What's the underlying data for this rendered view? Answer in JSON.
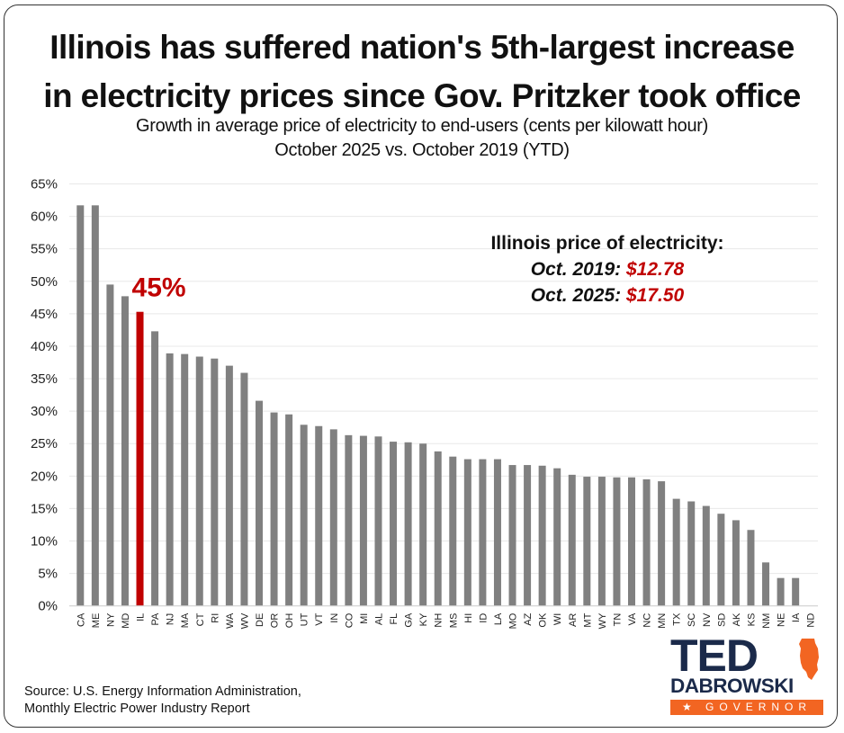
{
  "title_lines": [
    "Illinois has suffered nation's 5th-largest increase",
    "in electricity prices since Gov. Pritzker took office"
  ],
  "subtitle_lines": [
    "Growth in average price of electricity to end-users (cents per kilowatt hour)",
    "October 2025 vs. October 2019 (YTD)"
  ],
  "annotation": {
    "heading": "Illinois price of electricity:",
    "rows": [
      {
        "label": "Oct. 2019:",
        "value": "$12.78"
      },
      {
        "label": "Oct. 2025:",
        "value": "$17.50"
      }
    ]
  },
  "source_lines": [
    "Source: U.S. Energy Information Administration,",
    "Monthly Electric Power Industry Report"
  ],
  "logo": {
    "name_top": "TED",
    "name_bottom": "DABROWSKI",
    "tagline": "★ GOVERNOR ★"
  },
  "colors": {
    "bar": "#808080",
    "highlight": "#c00000",
    "grid": "#e8e8e8",
    "logo_navy": "#1b2a4a",
    "logo_orange": "#f26522"
  },
  "chart_data": {
    "type": "bar",
    "title": "Illinois has suffered nation's 5th-largest increase in electricity prices since Gov. Pritzker took office",
    "subtitle": "Growth in average price of electricity to end-users (cents per kilowatt hour) — October 2025 vs. October 2019 (YTD)",
    "xlabel": "",
    "ylabel": "",
    "ylim": [
      0,
      65
    ],
    "y_ticks": [
      0,
      5,
      10,
      15,
      20,
      25,
      30,
      35,
      40,
      45,
      50,
      55,
      60,
      65
    ],
    "y_tick_format": "percent",
    "grid": true,
    "highlight_category": "IL",
    "highlight_label": "45%",
    "categories": [
      "CA",
      "ME",
      "NY",
      "MD",
      "IL",
      "PA",
      "NJ",
      "MA",
      "CT",
      "RI",
      "WA",
      "WV",
      "DE",
      "OR",
      "OH",
      "UT",
      "VT",
      "IN",
      "CO",
      "MI",
      "AL",
      "FL",
      "GA",
      "KY",
      "NH",
      "MS",
      "HI",
      "ID",
      "LA",
      "MO",
      "AZ",
      "OK",
      "WI",
      "AR",
      "MT",
      "WY",
      "TN",
      "VA",
      "NC",
      "MN",
      "TX",
      "SC",
      "NV",
      "SD",
      "AK",
      "KS",
      "NM",
      "NE",
      "IA",
      "ND"
    ],
    "values": [
      61.7,
      61.7,
      49.5,
      47.7,
      45.3,
      42.3,
      38.9,
      38.8,
      38.4,
      38.1,
      37.0,
      35.9,
      31.6,
      29.8,
      29.5,
      27.9,
      27.7,
      27.2,
      26.3,
      26.2,
      26.1,
      25.3,
      25.2,
      25.0,
      23.8,
      23.0,
      22.6,
      22.6,
      22.6,
      21.7,
      21.7,
      21.6,
      21.2,
      20.2,
      19.9,
      19.9,
      19.8,
      19.8,
      19.5,
      19.2,
      16.5,
      16.1,
      15.4,
      14.2,
      13.2,
      11.7,
      6.7,
      4.3,
      4.3,
      0.0
    ]
  }
}
